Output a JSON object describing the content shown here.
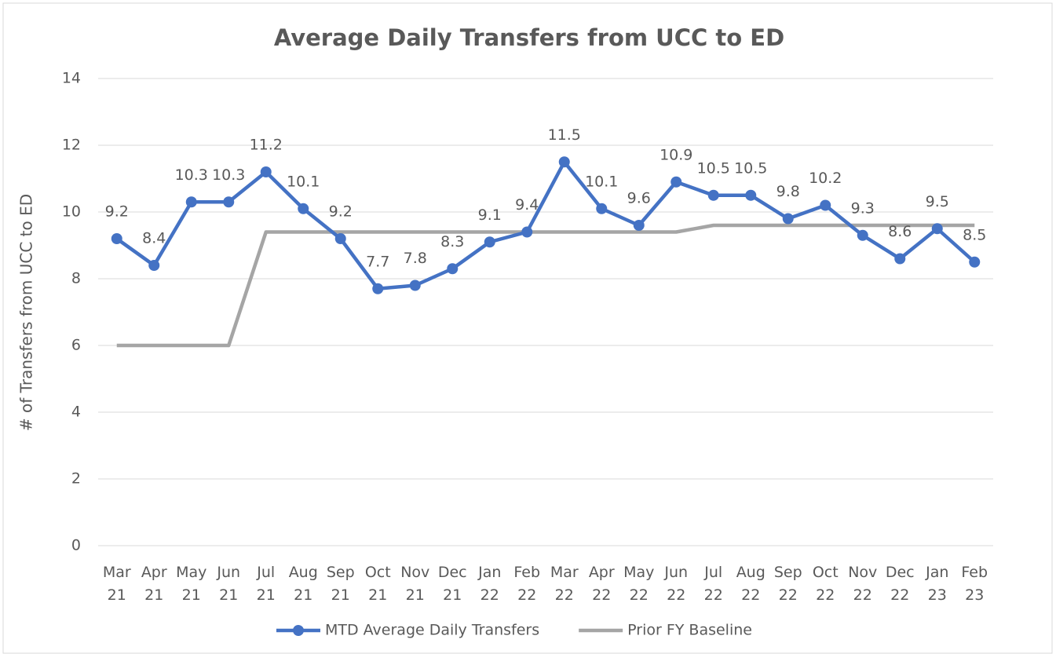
{
  "chart_data": {
    "type": "line",
    "title": "Average Daily Transfers from UCC to ED",
    "y_label": "# of Transfers from UCC to ED",
    "categories": [
      "Mar 21",
      "Apr 21",
      "May 21",
      "Jun 21",
      "Jul 21",
      "Aug 21",
      "Sep 21",
      "Oct 21",
      "Nov 21",
      "Dec 21",
      "Jan 22",
      "Feb 22",
      "Mar 22",
      "Apr 22",
      "May 22",
      "Jun 22",
      "Jul 22",
      "Aug 22",
      "Sep 22",
      "Oct 22",
      "Nov 22",
      "Dec 22",
      "Jan 23",
      "Feb 23"
    ],
    "series": [
      {
        "name": "MTD Average Daily Transfers",
        "color": "#4472c4",
        "markers": true,
        "data_labels": true,
        "values": [
          9.2,
          8.4,
          10.3,
          10.3,
          11.2,
          10.1,
          9.2,
          7.7,
          7.8,
          8.3,
          9.1,
          9.4,
          11.5,
          10.1,
          9.6,
          10.9,
          10.5,
          10.5,
          9.8,
          10.2,
          9.3,
          8.6,
          9.5,
          8.5
        ]
      },
      {
        "name": "Prior FY Baseline",
        "color": "#a5a5a5",
        "markers": false,
        "data_labels": false,
        "values": [
          6,
          6,
          6,
          6,
          9.4,
          9.4,
          9.4,
          9.4,
          9.4,
          9.4,
          9.4,
          9.4,
          9.4,
          9.4,
          9.4,
          9.4,
          9.6,
          9.6,
          9.6,
          9.6,
          9.6,
          9.6,
          9.6,
          9.6
        ]
      }
    ],
    "ylim": [
      0,
      14
    ],
    "yticks": [
      0,
      2,
      4,
      6,
      8,
      10,
      12,
      14
    ],
    "grid": true,
    "legend": "bottom"
  }
}
